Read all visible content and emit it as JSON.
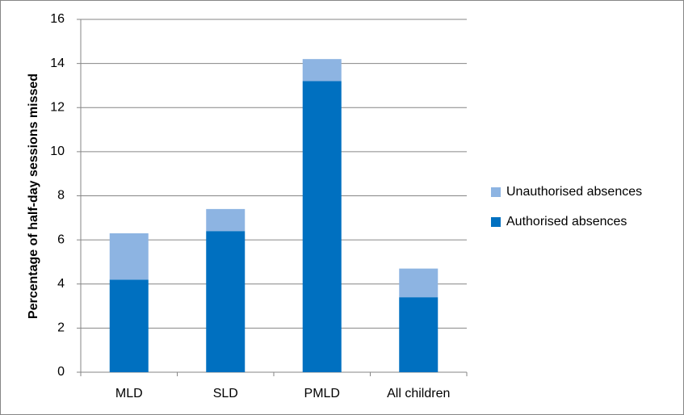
{
  "chart_data": {
    "type": "stacked-bar",
    "y_label": "Percentage of half-day sessions missed",
    "categories": [
      "MLD",
      "SLD",
      "PMLD",
      "All children"
    ],
    "series": [
      {
        "name": "Authorised absences",
        "color": "#0070c0",
        "values": [
          4.2,
          6.4,
          13.2,
          3.4
        ]
      },
      {
        "name": "Unauthorised absences",
        "color": "#8db4e2",
        "values": [
          2.1,
          1.0,
          1.0,
          1.3
        ]
      }
    ],
    "ylim": [
      0,
      16
    ],
    "yticks": [
      0,
      2,
      4,
      6,
      8,
      10,
      12,
      14,
      16
    ],
    "grid": true,
    "legend": "right"
  }
}
